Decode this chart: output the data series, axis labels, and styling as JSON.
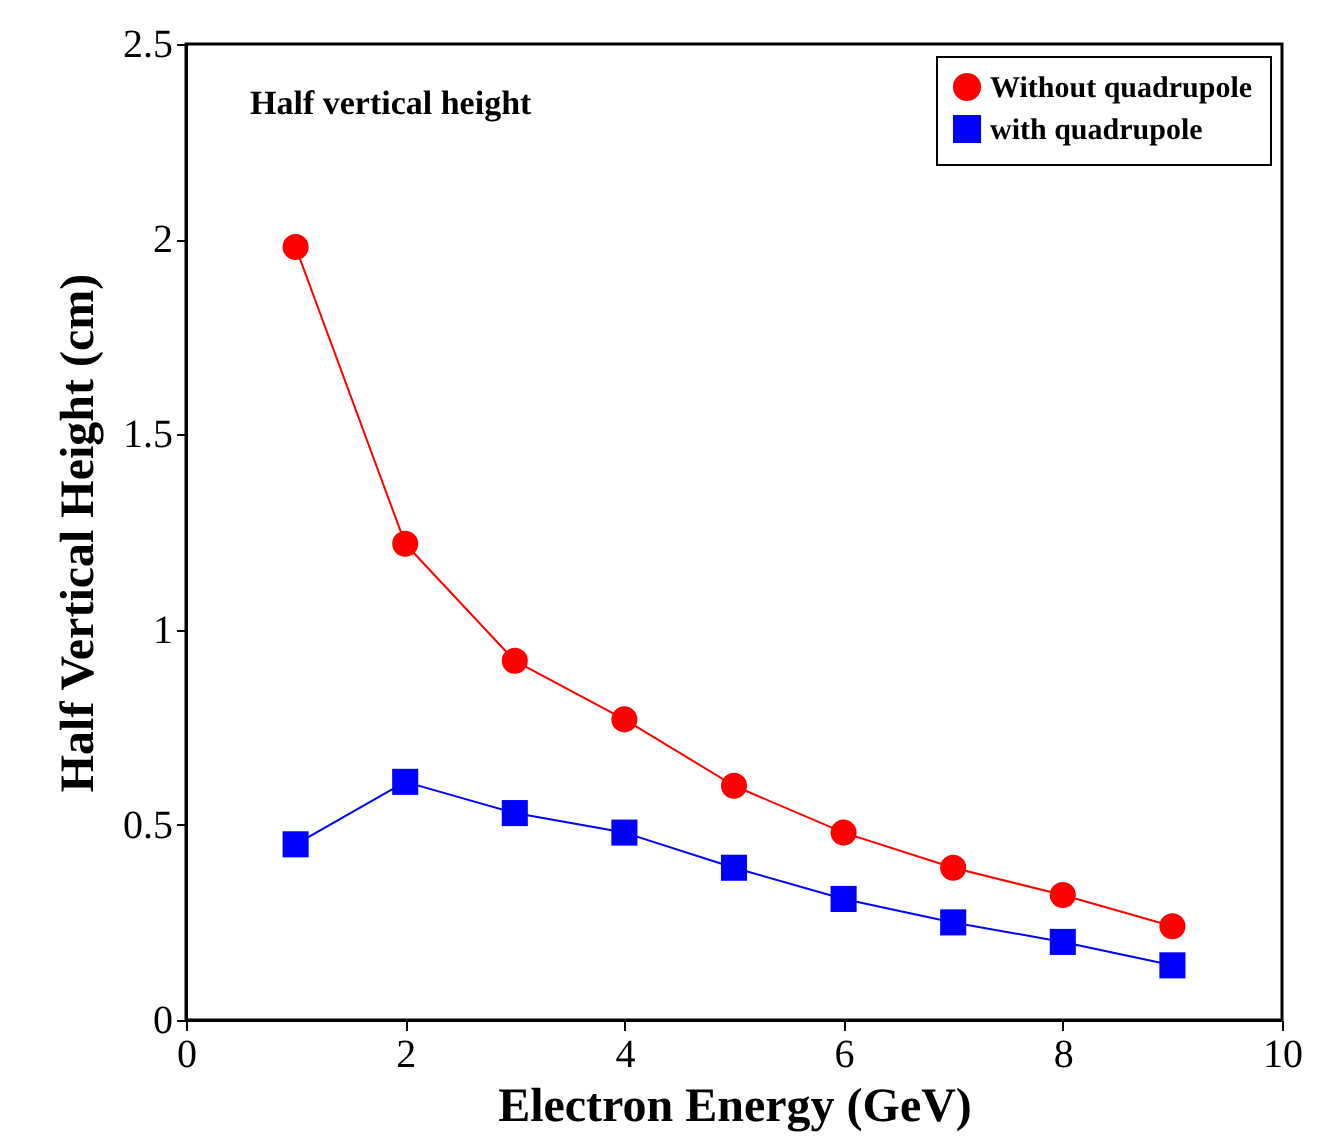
{
  "chart_data": {
    "type": "line",
    "xlabel": "Electron Energy (GeV)",
    "ylabel": "Half Vertical Height (cm)",
    "annotations": [
      "Half vertical height"
    ],
    "x": [
      1,
      2,
      3,
      4,
      5,
      6,
      7,
      8,
      9
    ],
    "series": [
      {
        "name": "Without quadrupole",
        "color": "#ff0000",
        "marker": "circle",
        "values": [
          1.98,
          1.22,
          0.92,
          0.77,
          0.6,
          0.48,
          0.39,
          0.32,
          0.24
        ]
      },
      {
        "name": "with quadrupole",
        "color": "#0000ff",
        "marker": "square",
        "values": [
          0.45,
          0.61,
          0.53,
          0.48,
          0.39,
          0.31,
          0.25,
          0.2,
          0.14
        ]
      }
    ],
    "xlim": [
      0,
      10
    ],
    "xticks": [
      0,
      2,
      4,
      6,
      8,
      10
    ],
    "ylim": [
      0,
      2.5
    ],
    "yticks": [
      0,
      0.5,
      1,
      1.5,
      2,
      2.5
    ],
    "legend": "top right"
  }
}
